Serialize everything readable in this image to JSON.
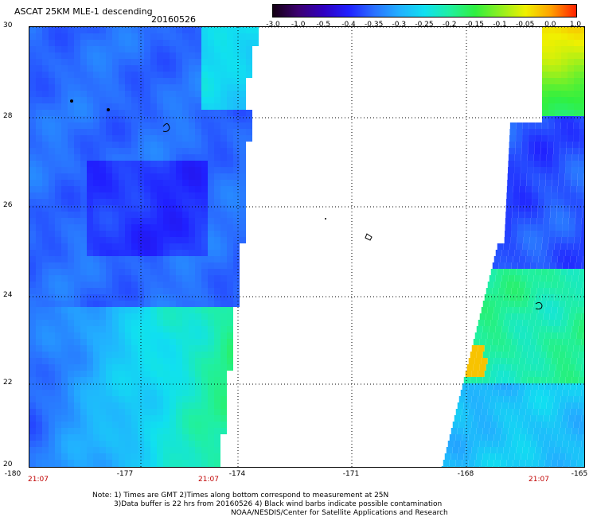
{
  "title": "ASCAT 25KM MLE-1 descending",
  "date": "20160526",
  "colorbar": {
    "labels": [
      "-3.0",
      "-1.0",
      "-0.5",
      "-0.4",
      "-0.35",
      "-0.3",
      "-0.25",
      "-0.2",
      "-0.15",
      "-0.1",
      "-0.05",
      "0.0",
      "1.0"
    ],
    "colors": [
      "#140014",
      "#3c0070",
      "#3000c0",
      "#2020ff",
      "#2a70ff",
      "#22b0ff",
      "#10e0f0",
      "#20f0a0",
      "#30f040",
      "#90f020",
      "#f0f000",
      "#ffa000",
      "#ff2000"
    ]
  },
  "axes": {
    "y_labels": [
      "30",
      "28",
      "26",
      "24",
      "22",
      "20"
    ],
    "x_labels": [
      "-180",
      "-177",
      "-174",
      "-171",
      "-168",
      "-165"
    ],
    "time_labels": [
      "21:07",
      "21:07",
      "21:07"
    ]
  },
  "notes": {
    "line1": "Note: 1) Times are GMT 2)Times along bottom correspond to measurement at 25N",
    "line2": "3)Data buffer is 22 hrs from 20160526 4) Black wind barbs indicate possible contamination",
    "line3": "NOAA/NESDIS/Center for Satellite Applications and Research"
  }
}
